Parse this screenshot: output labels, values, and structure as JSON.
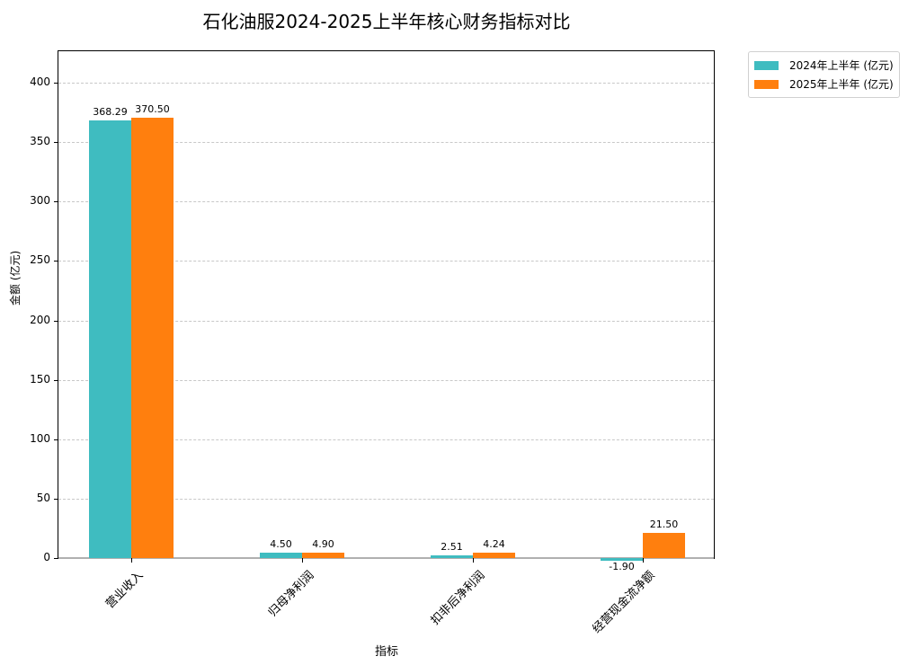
{
  "chart_data": {
    "type": "bar",
    "title": "石化油服2024-2025上半年核心财务指标对比",
    "xlabel": "指标",
    "ylabel": "金额 (亿元)",
    "categories": [
      "营业收入",
      "归母净利润",
      "扣非后净利润",
      "经营现金流净额"
    ],
    "series": [
      {
        "name": "2024年上半年 (亿元)",
        "color": "#3fbcc0",
        "values": [
          368.29,
          4.5,
          2.51,
          -1.9
        ],
        "labels": [
          "368.29",
          "4.50",
          "2.51",
          "-1.90"
        ]
      },
      {
        "name": "2025年上半年 (亿元)",
        "color": "#ff7f0e",
        "values": [
          370.5,
          4.9,
          4.24,
          21.5
        ],
        "labels": [
          "370.50",
          "4.90",
          "4.24",
          "21.50"
        ]
      }
    ],
    "yticks": [
      "0",
      "50",
      "100",
      "150",
      "200",
      "250",
      "300",
      "350",
      "400"
    ],
    "ylim": [
      -2,
      426
    ],
    "grid": true,
    "legend_position": "outside upper right"
  }
}
